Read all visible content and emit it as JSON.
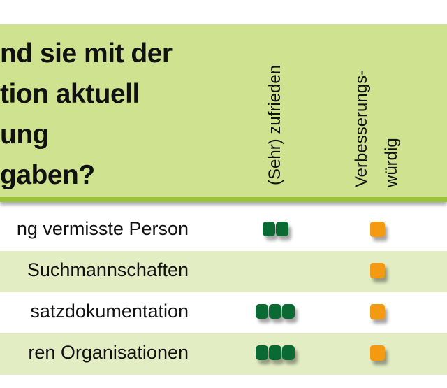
{
  "header": {
    "title_lines": [
      "nd sie mit der",
      "tion aktuell",
      "ung",
      "gaben?"
    ],
    "columns": [
      "(Sehr) zufrieden",
      "Verbesserungs-",
      "würdig"
    ]
  },
  "rows": [
    {
      "label": "ng vermisste Person",
      "satisfied_marks": 2,
      "improvable_marks": 1
    },
    {
      "label": "Suchmannschaften",
      "satisfied_marks": 0,
      "improvable_marks": 1
    },
    {
      "label": "satzdokumentation",
      "satisfied_marks": 3,
      "improvable_marks": 1
    },
    {
      "label": "ren Organisationen",
      "satisfied_marks": 3,
      "improvable_marks": 1
    }
  ],
  "colors": {
    "header_bg": "#cfe290",
    "stripe": "#9cc43a",
    "row_alt": "#e2edc4",
    "satisfied": "#0b6a34",
    "improvable": "#f39a12"
  }
}
